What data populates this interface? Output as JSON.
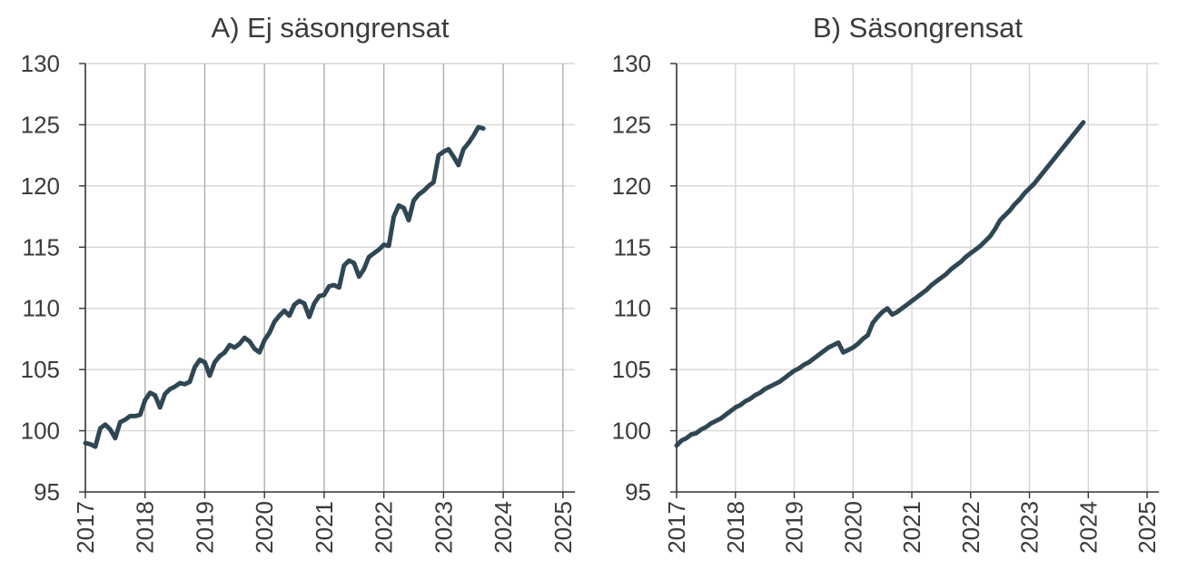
{
  "chart_data": [
    {
      "type": "line",
      "title": "A) Ej säsongrensat",
      "xlabel": "",
      "ylabel": "",
      "ylim": [
        95,
        130
      ],
      "yticks": [
        95,
        100,
        105,
        110,
        115,
        120,
        125,
        130
      ],
      "xlim": [
        2017,
        2025.2
      ],
      "xticks": [
        "2017",
        "2018",
        "2019",
        "2020",
        "2021",
        "2022",
        "2023",
        "2024",
        "2025"
      ],
      "grid": true,
      "color": "#2f4754",
      "x_step_months": 1,
      "x_start": "2017-01",
      "values": [
        99.0,
        98.9,
        98.7,
        100.2,
        100.5,
        100.1,
        99.4,
        100.7,
        100.9,
        101.2,
        101.2,
        101.3,
        102.5,
        103.1,
        102.9,
        101.9,
        103.0,
        103.4,
        103.6,
        103.9,
        103.8,
        104.0,
        105.2,
        105.8,
        105.6,
        104.5,
        105.6,
        106.1,
        106.4,
        107.0,
        106.8,
        107.1,
        107.6,
        107.3,
        106.7,
        106.4,
        107.4,
        108.0,
        108.9,
        109.4,
        109.8,
        109.4,
        110.3,
        110.6,
        110.4,
        109.3,
        110.4,
        111.0,
        111.1,
        111.8,
        111.9,
        111.7,
        113.5,
        113.9,
        113.7,
        112.6,
        113.2,
        114.2,
        114.5,
        114.8,
        115.2,
        115.1,
        117.5,
        118.4,
        118.2,
        117.2,
        118.8,
        119.3,
        119.6,
        120.0,
        120.3,
        122.5,
        122.8,
        123.0,
        122.4,
        121.7,
        123.0,
        123.5,
        124.1,
        124.8,
        124.7
      ]
    },
    {
      "type": "line",
      "title": "B) Säsongrensat",
      "xlabel": "",
      "ylabel": "",
      "ylim": [
        95,
        130
      ],
      "yticks": [
        95,
        100,
        105,
        110,
        115,
        120,
        125,
        130
      ],
      "xlim": [
        2017,
        2025.2
      ],
      "xticks": [
        "2017",
        "2018",
        "2019",
        "2020",
        "2021",
        "2022",
        "2023",
        "2024",
        "2025"
      ],
      "grid": true,
      "color": "#2f4754",
      "x_step_months": 1,
      "x_start": "2017-01",
      "values": [
        98.8,
        99.2,
        99.4,
        99.7,
        99.8,
        100.1,
        100.3,
        100.6,
        100.8,
        101.0,
        101.3,
        101.6,
        101.9,
        102.1,
        102.4,
        102.6,
        102.9,
        103.1,
        103.4,
        103.6,
        103.8,
        104.0,
        104.3,
        104.6,
        104.9,
        105.1,
        105.4,
        105.6,
        105.9,
        106.2,
        106.5,
        106.8,
        107.0,
        107.2,
        106.4,
        106.6,
        106.8,
        107.1,
        107.5,
        107.8,
        108.8,
        109.3,
        109.7,
        110.0,
        109.5,
        109.7,
        110.0,
        110.3,
        110.6,
        110.9,
        111.2,
        111.5,
        111.9,
        112.2,
        112.5,
        112.8,
        113.2,
        113.5,
        113.8,
        114.2,
        114.5,
        114.8,
        115.1,
        115.5,
        115.9,
        116.5,
        117.2,
        117.6,
        118.0,
        118.5,
        118.9,
        119.4,
        119.8,
        120.2,
        120.7,
        121.2,
        121.7,
        122.2,
        122.7,
        123.2,
        123.7,
        124.2,
        124.7,
        125.2
      ]
    }
  ]
}
